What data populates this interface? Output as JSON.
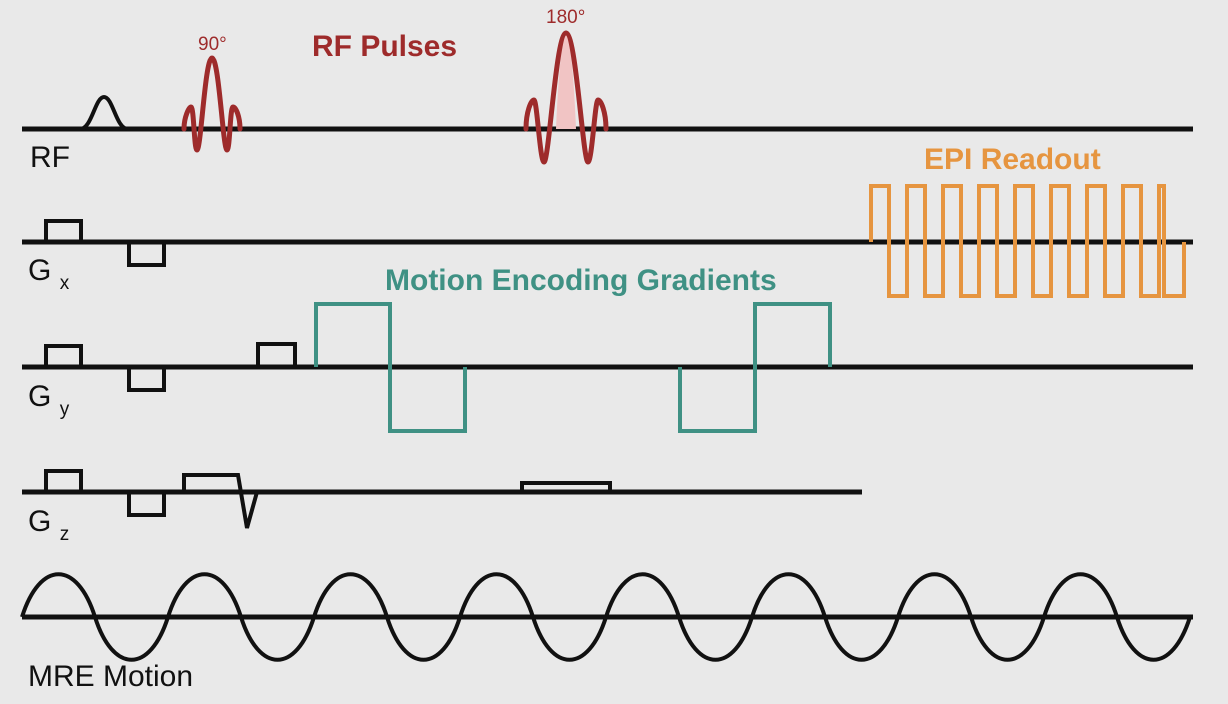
{
  "channels": {
    "rf": "RF",
    "gx_base": "G",
    "gx_sub": "x",
    "gy_base": "G",
    "gy_sub": "y",
    "gz_base": "G",
    "gz_sub": "z",
    "motion": "MRE Motion"
  },
  "annotations": {
    "rf_pulses": "RF Pulses",
    "angle_90": "90°",
    "angle_180": "180°",
    "motion_encoding": "Motion Encoding Gradients",
    "epi_readout": "EPI Readout"
  },
  "colors": {
    "rf": "#9e2b2b",
    "motion_encoding": "#3f9184",
    "epi_readout": "#e69540",
    "baseline": "#111111",
    "background": "#e9e9e9"
  }
}
